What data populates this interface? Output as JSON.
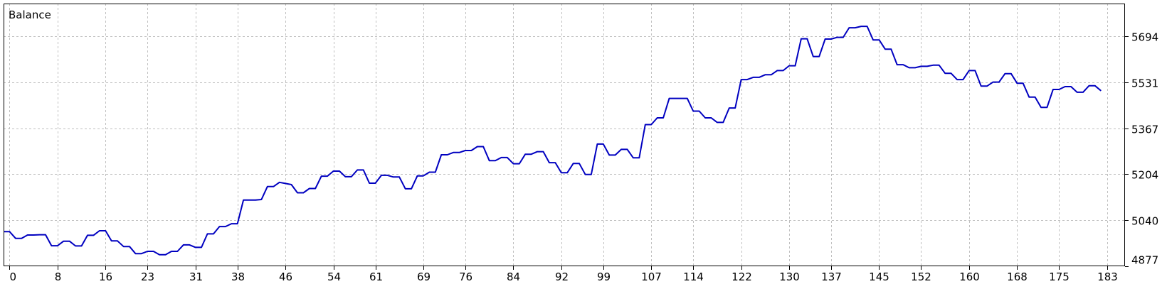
{
  "chart_data": {
    "type": "line",
    "title": "Balance",
    "xlabel": "",
    "ylabel": "",
    "grid": true,
    "colors": {
      "line": "#0000c0",
      "grid": "#c0c0c0",
      "frame": "#000000",
      "background": "#ffffff"
    },
    "xlim": [
      -1,
      186
    ],
    "ylim": [
      4877,
      5810
    ],
    "x_ticks": [
      0,
      8,
      16,
      23,
      31,
      38,
      46,
      54,
      61,
      69,
      76,
      84,
      92,
      99,
      107,
      114,
      122,
      130,
      137,
      145,
      152,
      160,
      168,
      175,
      183
    ],
    "y_ticks": [
      4877,
      5040,
      5204,
      5367,
      5531,
      5694
    ],
    "series": [
      {
        "values": [
          [
            -1,
            5000
          ],
          [
            0,
            5000
          ],
          [
            1,
            4976
          ],
          [
            2,
            4976
          ],
          [
            3,
            4988
          ],
          [
            4,
            4988
          ],
          [
            5,
            4989
          ],
          [
            6,
            4989
          ],
          [
            7,
            4950
          ],
          [
            8,
            4950
          ],
          [
            9,
            4966
          ],
          [
            10,
            4966
          ],
          [
            11,
            4949
          ],
          [
            12,
            4949
          ],
          [
            13,
            4987
          ],
          [
            14,
            4987
          ],
          [
            15,
            5003
          ],
          [
            16,
            5003
          ],
          [
            17,
            4967
          ],
          [
            18,
            4967
          ],
          [
            19,
            4947
          ],
          [
            20,
            4947
          ],
          [
            21,
            4922
          ],
          [
            22,
            4922
          ],
          [
            23,
            4930
          ],
          [
            24,
            4930
          ],
          [
            25,
            4918
          ],
          [
            26,
            4918
          ],
          [
            27,
            4930
          ],
          [
            28,
            4930
          ],
          [
            29,
            4953
          ],
          [
            30,
            4953
          ],
          [
            31,
            4944
          ],
          [
            32,
            4944
          ],
          [
            33,
            4992
          ],
          [
            34,
            4992
          ],
          [
            35,
            5018
          ],
          [
            36,
            5018
          ],
          [
            37,
            5028
          ],
          [
            38,
            5028
          ],
          [
            39,
            5112
          ],
          [
            40,
            5112
          ],
          [
            41,
            5112
          ],
          [
            42,
            5114
          ],
          [
            43,
            5160
          ],
          [
            44,
            5160
          ],
          [
            45,
            5175
          ],
          [
            46,
            5171
          ],
          [
            47,
            5167
          ],
          [
            48,
            5138
          ],
          [
            49,
            5138
          ],
          [
            50,
            5153
          ],
          [
            51,
            5153
          ],
          [
            52,
            5197
          ],
          [
            53,
            5197
          ],
          [
            54,
            5215
          ],
          [
            55,
            5215
          ],
          [
            56,
            5195
          ],
          [
            57,
            5195
          ],
          [
            58,
            5219
          ],
          [
            59,
            5219
          ],
          [
            60,
            5172
          ],
          [
            61,
            5172
          ],
          [
            62,
            5200
          ],
          [
            63,
            5200
          ],
          [
            64,
            5194
          ],
          [
            65,
            5194
          ],
          [
            66,
            5152
          ],
          [
            67,
            5152
          ],
          [
            68,
            5198
          ],
          [
            69,
            5198
          ],
          [
            70,
            5211
          ],
          [
            71,
            5211
          ],
          [
            72,
            5273
          ],
          [
            73,
            5273
          ],
          [
            74,
            5281
          ],
          [
            75,
            5281
          ],
          [
            76,
            5288
          ],
          [
            77,
            5288
          ],
          [
            78,
            5302
          ],
          [
            79,
            5302
          ],
          [
            80,
            5252
          ],
          [
            81,
            5252
          ],
          [
            82,
            5263
          ],
          [
            83,
            5263
          ],
          [
            84,
            5241
          ],
          [
            85,
            5241
          ],
          [
            86,
            5275
          ],
          [
            87,
            5275
          ],
          [
            88,
            5284
          ],
          [
            89,
            5284
          ],
          [
            90,
            5245
          ],
          [
            91,
            5245
          ],
          [
            92,
            5209
          ],
          [
            93,
            5209
          ],
          [
            94,
            5242
          ],
          [
            95,
            5242
          ],
          [
            96,
            5203
          ],
          [
            97,
            5203
          ],
          [
            98,
            5311
          ],
          [
            99,
            5311
          ],
          [
            100,
            5272
          ],
          [
            101,
            5272
          ],
          [
            102,
            5292
          ],
          [
            103,
            5292
          ],
          [
            104,
            5262
          ],
          [
            105,
            5262
          ],
          [
            106,
            5380
          ],
          [
            107,
            5380
          ],
          [
            108,
            5404
          ],
          [
            109,
            5404
          ],
          [
            110,
            5473
          ],
          [
            111,
            5473
          ],
          [
            112,
            5473
          ],
          [
            113,
            5473
          ],
          [
            114,
            5428
          ],
          [
            115,
            5428
          ],
          [
            116,
            5404
          ],
          [
            117,
            5404
          ],
          [
            118,
            5388
          ],
          [
            119,
            5388
          ],
          [
            120,
            5439
          ],
          [
            121,
            5439
          ],
          [
            122,
            5540
          ],
          [
            123,
            5540
          ],
          [
            124,
            5548
          ],
          [
            125,
            5548
          ],
          [
            126,
            5557
          ],
          [
            127,
            5557
          ],
          [
            128,
            5572
          ],
          [
            129,
            5572
          ],
          [
            130,
            5589
          ],
          [
            131,
            5589
          ],
          [
            132,
            5685
          ],
          [
            133,
            5685
          ],
          [
            134,
            5622
          ],
          [
            135,
            5622
          ],
          [
            136,
            5684
          ],
          [
            137,
            5684
          ],
          [
            138,
            5690
          ],
          [
            139,
            5690
          ],
          [
            140,
            5724
          ],
          [
            141,
            5724
          ],
          [
            142,
            5729
          ],
          [
            143,
            5729
          ],
          [
            144,
            5681
          ],
          [
            145,
            5681
          ],
          [
            146,
            5648
          ],
          [
            147,
            5648
          ],
          [
            148,
            5593
          ],
          [
            149,
            5593
          ],
          [
            150,
            5582
          ],
          [
            151,
            5582
          ],
          [
            152,
            5587
          ],
          [
            153,
            5587
          ],
          [
            154,
            5591
          ],
          [
            155,
            5591
          ],
          [
            156,
            5562
          ],
          [
            157,
            5562
          ],
          [
            158,
            5540
          ],
          [
            159,
            5540
          ],
          [
            160,
            5572
          ],
          [
            161,
            5572
          ],
          [
            162,
            5517
          ],
          [
            163,
            5517
          ],
          [
            164,
            5531
          ],
          [
            165,
            5531
          ],
          [
            166,
            5561
          ],
          [
            167,
            5561
          ],
          [
            168,
            5527
          ],
          [
            169,
            5527
          ],
          [
            170,
            5478
          ],
          [
            171,
            5478
          ],
          [
            172,
            5441
          ],
          [
            173,
            5441
          ],
          [
            174,
            5505
          ],
          [
            175,
            5505
          ],
          [
            176,
            5515
          ],
          [
            177,
            5515
          ],
          [
            178,
            5495
          ],
          [
            179,
            5495
          ],
          [
            180,
            5518
          ],
          [
            181,
            5518
          ],
          [
            182,
            5500
          ]
        ]
      }
    ]
  }
}
